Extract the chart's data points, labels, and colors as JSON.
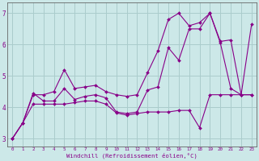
{
  "xlabel": "Windchill (Refroidissement éolien,°C)",
  "background_color": "#cce8e8",
  "grid_color": "#aacccc",
  "line_color": "#880088",
  "x_values": [
    0,
    1,
    2,
    3,
    4,
    5,
    6,
    7,
    8,
    9,
    10,
    11,
    12,
    13,
    14,
    15,
    16,
    17,
    18,
    19,
    20,
    21,
    22,
    23
  ],
  "y_upper": [
    3.0,
    3.5,
    4.4,
    4.4,
    4.5,
    5.2,
    4.6,
    4.65,
    4.7,
    4.5,
    4.4,
    4.35,
    4.4,
    5.1,
    5.8,
    6.8,
    7.0,
    6.6,
    6.7,
    7.0,
    6.1,
    6.15,
    4.4,
    6.65
  ],
  "y_mid": [
    3.0,
    3.5,
    4.45,
    4.2,
    4.2,
    4.6,
    4.25,
    4.35,
    4.4,
    4.3,
    3.85,
    3.8,
    3.85,
    4.55,
    4.65,
    5.9,
    5.5,
    6.5,
    6.5,
    7.0,
    6.05,
    4.6,
    4.4,
    4.4
  ],
  "y_lower": [
    3.0,
    3.5,
    4.1,
    4.1,
    4.1,
    4.1,
    4.15,
    4.2,
    4.2,
    4.1,
    3.82,
    3.75,
    3.8,
    3.85,
    3.85,
    3.85,
    3.9,
    3.9,
    3.35,
    4.4,
    4.4,
    4.4,
    4.4,
    4.4
  ],
  "ylim": [
    2.75,
    7.35
  ],
  "yticks": [
    3,
    4,
    5,
    6,
    7
  ],
  "xlim": [
    -0.5,
    23.5
  ]
}
